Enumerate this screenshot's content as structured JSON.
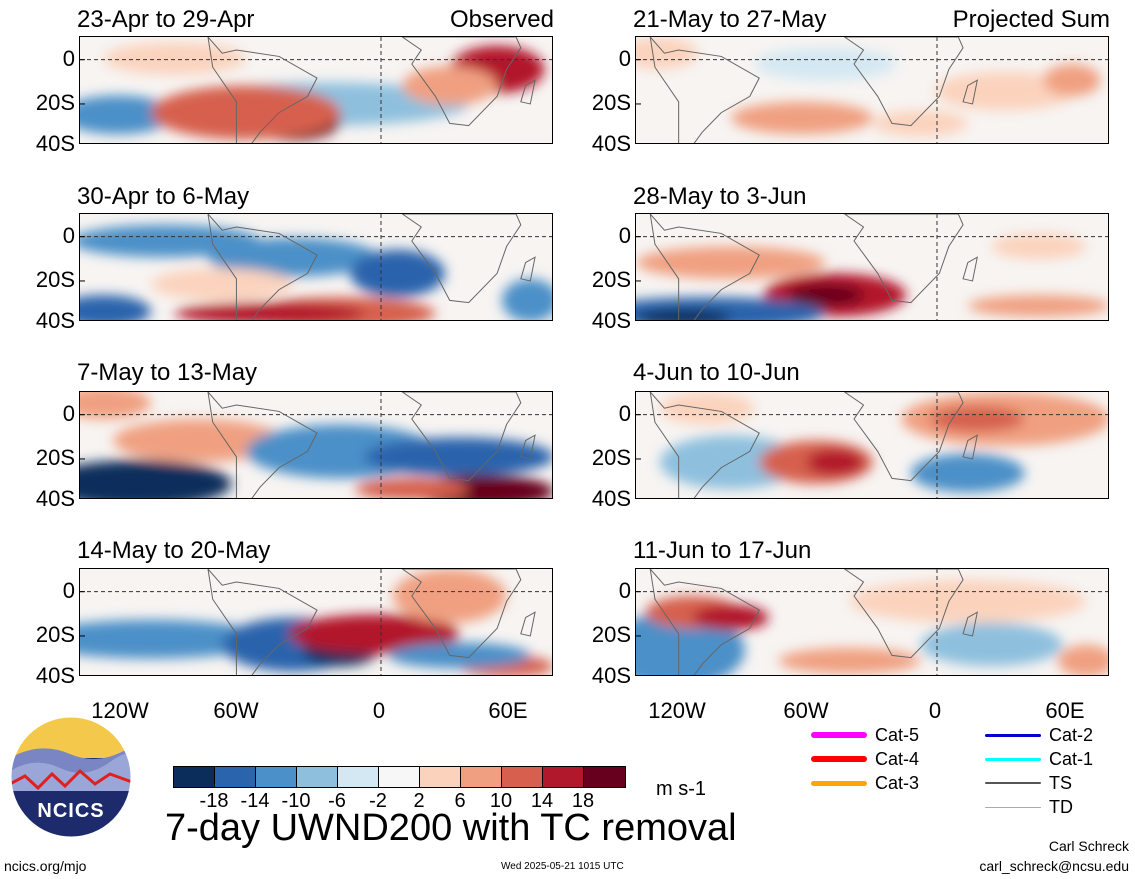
{
  "panels": [
    {
      "title": "23-Apr to 29-Apr",
      "tag": "Observed"
    },
    {
      "title": "30-Apr to 6-May",
      "tag": ""
    },
    {
      "title": "7-May to 13-May",
      "tag": ""
    },
    {
      "title": "14-May to 20-May",
      "tag": ""
    },
    {
      "title": "21-May to 27-May",
      "tag": "Projected Sum"
    },
    {
      "title": "28-May to 3-Jun",
      "tag": ""
    },
    {
      "title": "4-Jun to 10-Jun",
      "tag": ""
    },
    {
      "title": "11-Jun to 17-Jun",
      "tag": ""
    }
  ],
  "axes": {
    "y_ticks": [
      "0",
      "20S",
      "40S"
    ],
    "x_ticks": [
      "120W",
      "60W",
      "0",
      "60E"
    ]
  },
  "chart_data": {
    "type": "heatmap",
    "title": "7-day UWND200 with TC removal",
    "units": "m s-1",
    "colorbar": {
      "labels": [
        "-18",
        "-14",
        "-10",
        "-6",
        "-2",
        "2",
        "6",
        "10",
        "14",
        "18"
      ],
      "colors": [
        "#0b2d5c",
        "#2a64ac",
        "#4b90c8",
        "#8ec0de",
        "#d4e8f3",
        "#f7f7f7",
        "#fbd3bd",
        "#f0a081",
        "#d6604d",
        "#b2182b",
        "#67001f"
      ]
    }
  },
  "legend": {
    "items": [
      {
        "label": "Cat-5",
        "color": "#ff00ff"
      },
      {
        "label": "Cat-4",
        "color": "#ff0000"
      },
      {
        "label": "Cat-3",
        "color": "#ffa500"
      },
      {
        "label": "Cat-2",
        "color": "#0000cc"
      },
      {
        "label": "Cat-1",
        "color": "#00ffff"
      },
      {
        "label": "TS",
        "color": "#555555"
      },
      {
        "label": "TD",
        "color": "#aaaaaa"
      }
    ]
  },
  "logo": {
    "text": "NCICS"
  },
  "footer": {
    "left": "ncics.org/mjo",
    "center": "Wed 2025-05-21 1015 UTC",
    "right_name": "Carl Schreck",
    "right_email": "carl_schreck@ncsu.edu"
  }
}
